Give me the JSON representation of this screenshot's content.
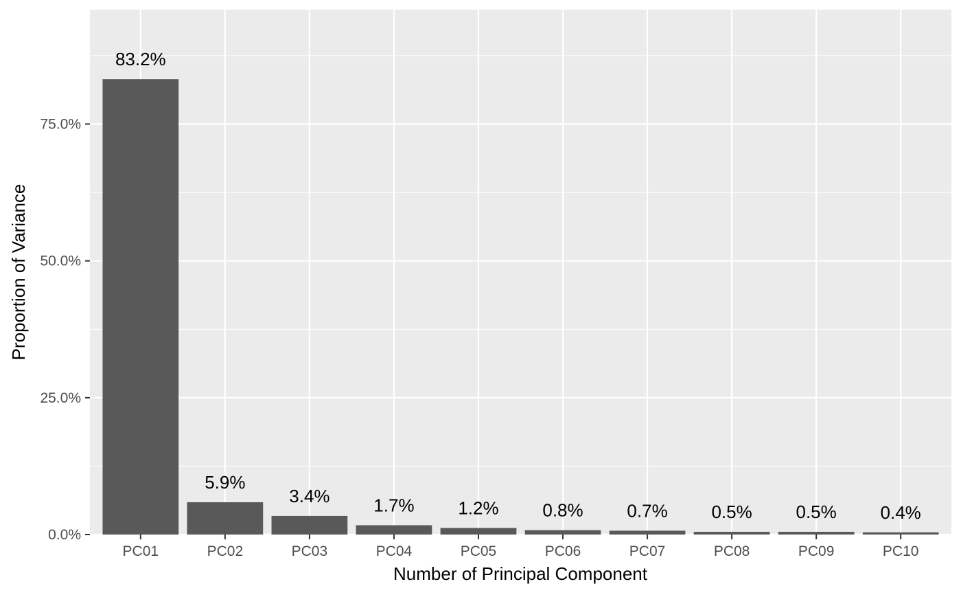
{
  "chart_data": {
    "type": "bar",
    "title": "",
    "xlabel": "Number of Principal Component",
    "ylabel": "Proportion of Variance",
    "categories": [
      "PC01",
      "PC02",
      "PC03",
      "PC04",
      "PC05",
      "PC06",
      "PC07",
      "PC08",
      "PC09",
      "PC10"
    ],
    "values": [
      83.2,
      5.9,
      3.4,
      1.7,
      1.2,
      0.8,
      0.7,
      0.5,
      0.5,
      0.4
    ],
    "data_labels": [
      "83.2%",
      "5.9%",
      "3.4%",
      "1.7%",
      "1.2%",
      "0.8%",
      "0.7%",
      "0.5%",
      "0.5%",
      "0.4%"
    ],
    "yticks": [
      0,
      25,
      50,
      75
    ],
    "ytick_labels": [
      "0.0%",
      "25.0%",
      "50.0%",
      "75.0%"
    ],
    "ylim": [
      0,
      95.9
    ],
    "grid": true,
    "legend": "none",
    "colors": {
      "panel": "#ebebeb",
      "grid": "#ffffff",
      "bar": "#595959",
      "tick": "#333333"
    }
  }
}
